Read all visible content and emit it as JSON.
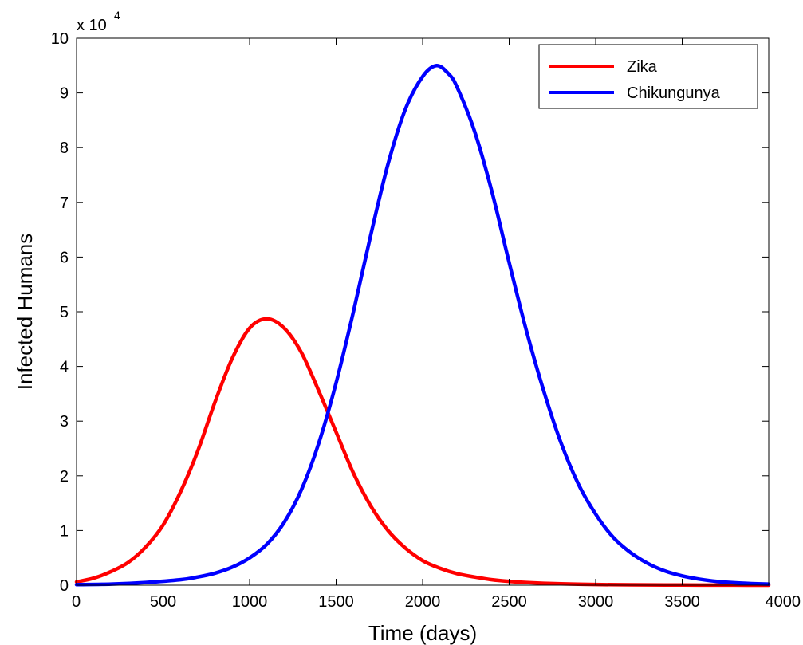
{
  "chart_data": {
    "type": "line",
    "xlabel": "Time (days)",
    "ylabel": "Infected Humans",
    "y_multiplier_label": {
      "base": "x 10",
      "exponent": "4"
    },
    "xlim": [
      0,
      4000
    ],
    "ylim": [
      0,
      10
    ],
    "xticks": [
      "0",
      "500",
      "1000",
      "1500",
      "2000",
      "2500",
      "3000",
      "3500",
      "4000"
    ],
    "yticks": [
      "0",
      "1",
      "2",
      "3",
      "4",
      "5",
      "6",
      "7",
      "8",
      "9",
      "10"
    ],
    "xtick_values": [
      0,
      500,
      1000,
      1500,
      2000,
      2500,
      3000,
      3500,
      4000
    ],
    "ytick_values": [
      0,
      1,
      2,
      3,
      4,
      5,
      6,
      7,
      8,
      9,
      10
    ],
    "grid": false,
    "legend_position": "top-right",
    "series": [
      {
        "name": "Zika",
        "color": "#ff0000",
        "x": [
          0,
          100,
          200,
          300,
          400,
          500,
          600,
          700,
          800,
          900,
          1000,
          1100,
          1200,
          1300,
          1400,
          1500,
          1600,
          1700,
          1800,
          1900,
          2000,
          2100,
          2200,
          2300,
          2400,
          2500,
          2600,
          2700,
          2800,
          2900,
          3000,
          3200,
          3400,
          3600,
          3800,
          4000
        ],
        "y": [
          0.06,
          0.13,
          0.25,
          0.42,
          0.7,
          1.1,
          1.7,
          2.45,
          3.35,
          4.15,
          4.7,
          4.87,
          4.7,
          4.25,
          3.55,
          2.8,
          2.05,
          1.45,
          1.0,
          0.68,
          0.45,
          0.31,
          0.21,
          0.15,
          0.1,
          0.07,
          0.05,
          0.035,
          0.025,
          0.018,
          0.012,
          0.007,
          0.004,
          0.002,
          0.001,
          0.0005
        ]
      },
      {
        "name": "Chikungunya",
        "color": "#0000ff",
        "x": [
          0,
          200,
          400,
          600,
          700,
          800,
          900,
          1000,
          1100,
          1200,
          1300,
          1400,
          1500,
          1600,
          1700,
          1800,
          1900,
          2000,
          2080,
          2150,
          2200,
          2300,
          2400,
          2500,
          2600,
          2700,
          2800,
          2900,
          3000,
          3100,
          3200,
          3300,
          3400,
          3500,
          3600,
          3700,
          3800,
          3900,
          4000
        ],
        "y": [
          0.01,
          0.02,
          0.05,
          0.1,
          0.15,
          0.22,
          0.33,
          0.5,
          0.75,
          1.15,
          1.75,
          2.6,
          3.7,
          5.0,
          6.4,
          7.7,
          8.7,
          9.3,
          9.5,
          9.35,
          9.1,
          8.3,
          7.2,
          5.9,
          4.65,
          3.55,
          2.6,
          1.85,
          1.3,
          0.88,
          0.6,
          0.4,
          0.26,
          0.17,
          0.11,
          0.07,
          0.045,
          0.03,
          0.02
        ]
      }
    ]
  }
}
